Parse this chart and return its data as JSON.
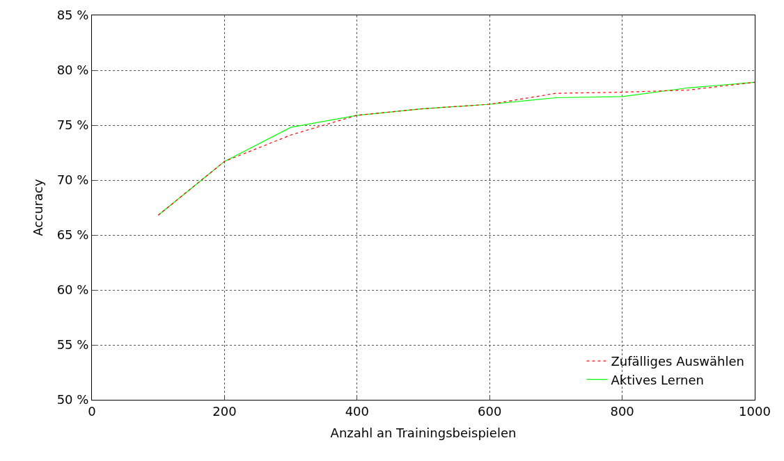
{
  "chart_data": {
    "type": "line",
    "xlabel": "Anzahl an Trainingsbeispielen",
    "ylabel": "Accuracy",
    "x": [
      100,
      200,
      300,
      400,
      500,
      600,
      700,
      800,
      900,
      1000
    ],
    "series": [
      {
        "name": "Zufälliges Auswählen",
        "color": "#ff0000",
        "line_style": "dashed",
        "values": [
          66.8,
          71.7,
          74.1,
          75.9,
          76.5,
          76.9,
          77.9,
          78.0,
          78.2,
          78.9
        ]
      },
      {
        "name": "Aktives Lernen",
        "color": "#00ff00",
        "line_style": "solid",
        "values": [
          66.8,
          71.7,
          74.8,
          75.9,
          76.5,
          76.9,
          77.5,
          77.6,
          78.4,
          78.9
        ]
      }
    ],
    "xlim": [
      0,
      1000
    ],
    "xticks": [
      0,
      200,
      400,
      600,
      800,
      1000
    ],
    "ylim": [
      50,
      85
    ],
    "yticks": [
      {
        "value": 50,
        "label": "50 %"
      },
      {
        "value": 55,
        "label": "55 %"
      },
      {
        "value": 60,
        "label": "60 %"
      },
      {
        "value": 65,
        "label": "65 %"
      },
      {
        "value": 70,
        "label": "70 %"
      },
      {
        "value": 75,
        "label": "75 %"
      },
      {
        "value": 80,
        "label": "80 %"
      },
      {
        "value": 85,
        "label": "85 %"
      }
    ],
    "grid": true,
    "legend": "bottom right",
    "marker": "none"
  }
}
